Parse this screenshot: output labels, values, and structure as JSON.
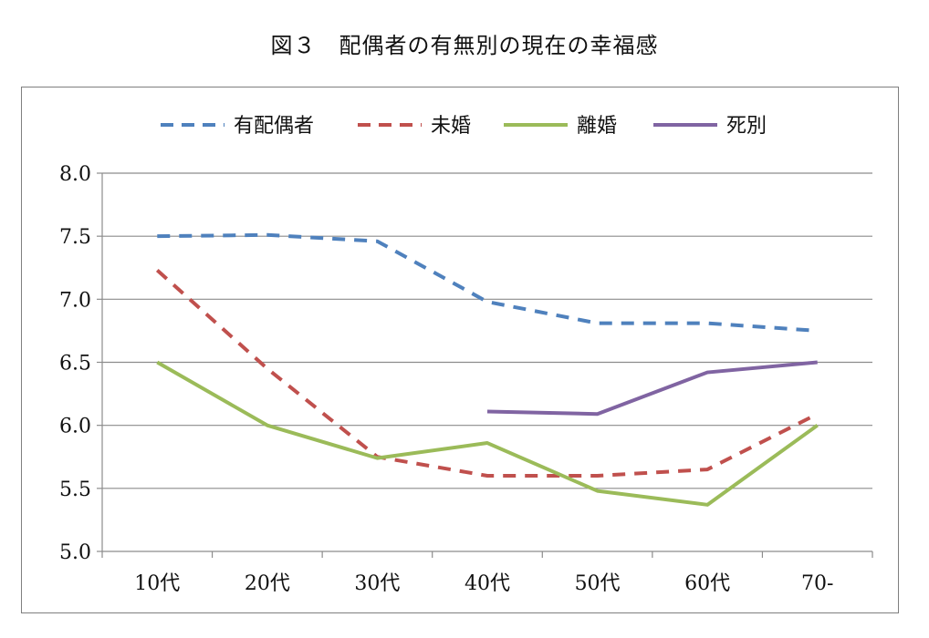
{
  "chart_data": {
    "type": "line",
    "title": "図３　配偶者の有無別の現在の幸福感",
    "xlabel": "",
    "ylabel": "",
    "categories": [
      "10代",
      "20代",
      "30代",
      "40代",
      "50代",
      "60代",
      "70-"
    ],
    "ylim": [
      5.0,
      8.0
    ],
    "yticks": [
      "5.0",
      "5.5",
      "6.0",
      "6.5",
      "7.0",
      "7.5",
      "8.0"
    ],
    "grid": true,
    "legend_position": "top",
    "series": [
      {
        "name": "有配偶者",
        "color": "#4f81bd",
        "style": "dashed",
        "values": [
          7.5,
          7.51,
          7.46,
          6.98,
          6.81,
          6.81,
          6.75
        ]
      },
      {
        "name": "未婚",
        "color": "#c0504d",
        "style": "dashed",
        "values": [
          7.23,
          6.45,
          5.75,
          5.6,
          5.6,
          5.65,
          6.09
        ]
      },
      {
        "name": "離婚",
        "color": "#9bbb59",
        "style": "solid",
        "values": [
          6.5,
          6.0,
          5.74,
          5.86,
          5.48,
          5.37,
          6.0
        ]
      },
      {
        "name": "死別",
        "color": "#8064a2",
        "style": "solid",
        "values": [
          null,
          null,
          null,
          6.11,
          6.09,
          6.42,
          6.5
        ]
      }
    ]
  }
}
